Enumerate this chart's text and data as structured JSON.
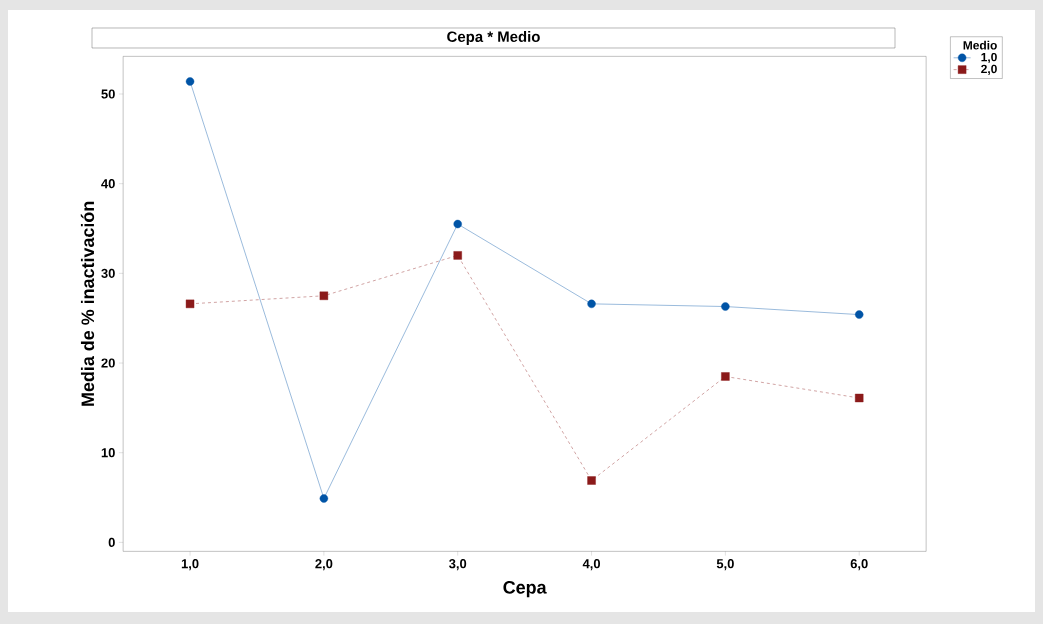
{
  "chart_data": {
    "type": "line",
    "title": "Cepa * Medio",
    "xlabel": "Cepa",
    "ylabel": "Media de % inactivación",
    "legend_title": "Medio",
    "legend": "top right",
    "categories": [
      "1,0",
      "2,0",
      "3,0",
      "4,0",
      "5,0",
      "6,0"
    ],
    "series": [
      {
        "name": "1,0",
        "color": "#0054a6",
        "marker": "circle",
        "line_style": "solid",
        "values": [
          51.4,
          4.9,
          35.5,
          26.6,
          26.3,
          25.4
        ]
      },
      {
        "name": "2,0",
        "color": "#8b1a1a",
        "marker": "square",
        "line_style": "dashed",
        "values": [
          26.6,
          27.5,
          32.0,
          6.9,
          18.5,
          16.1
        ]
      }
    ],
    "ylim": [
      -1,
      54.2
    ],
    "yticks": [
      0,
      10,
      20,
      30,
      40,
      50
    ],
    "grid": false
  }
}
